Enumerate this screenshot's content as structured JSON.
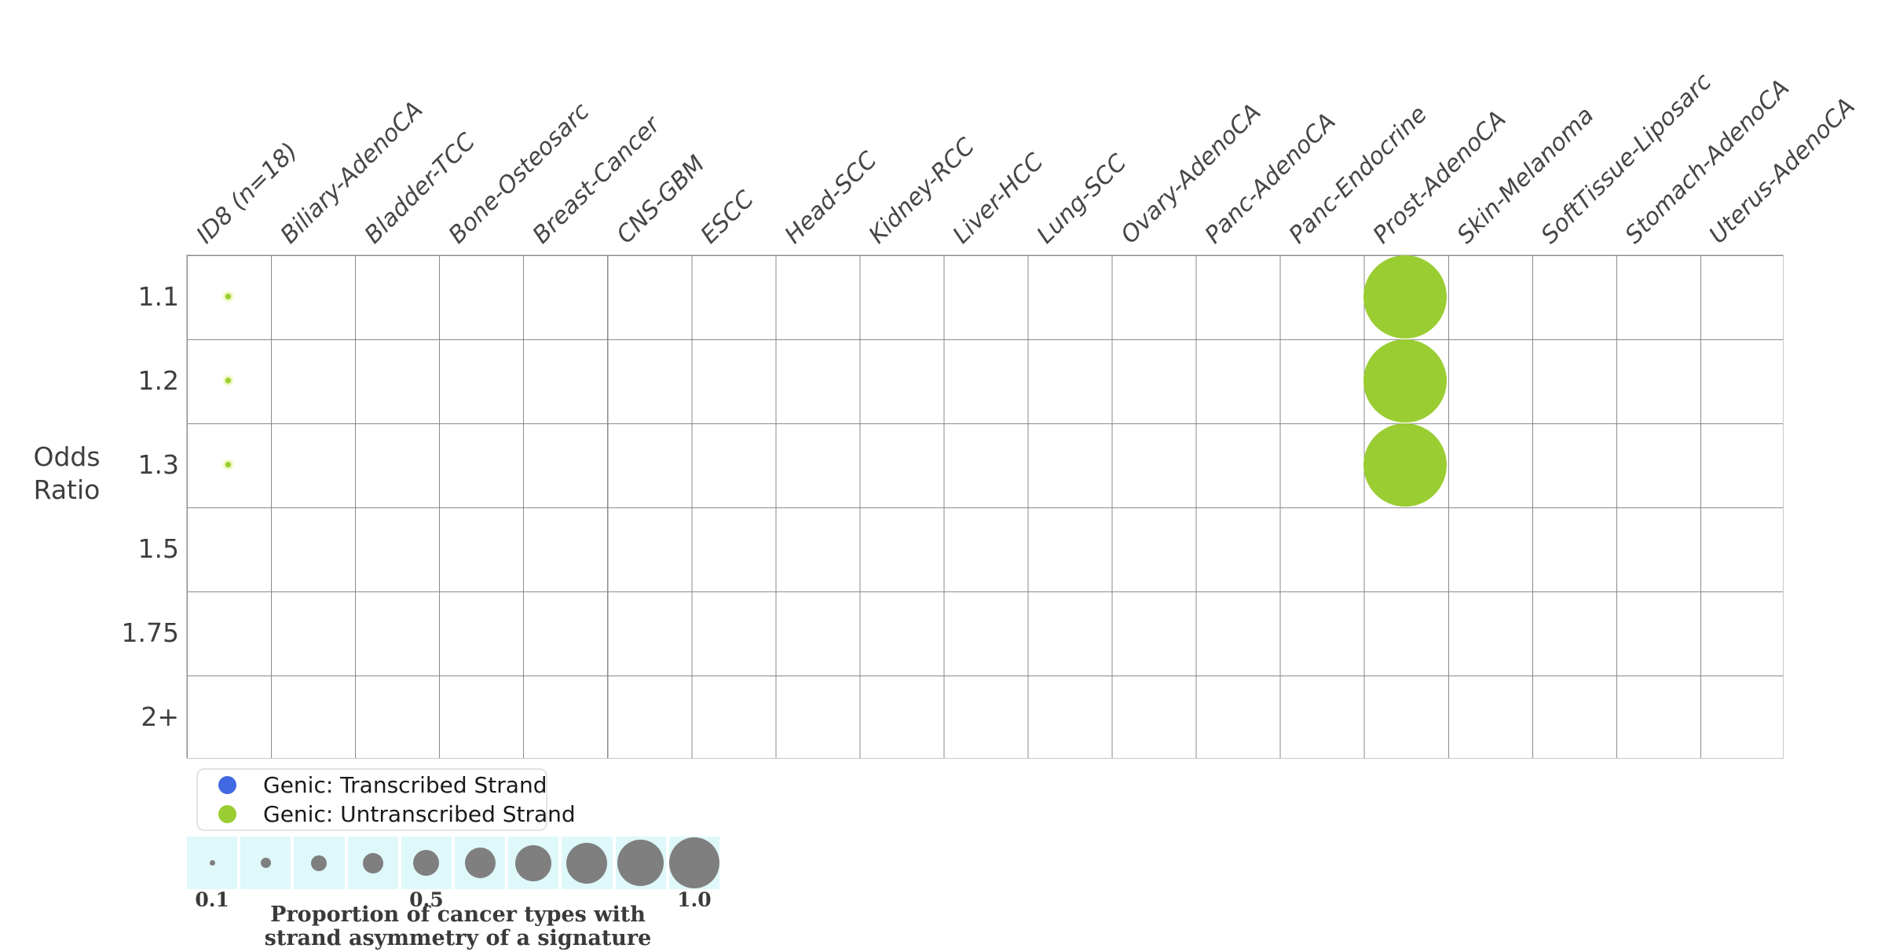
{
  "figure": {
    "y_axis_title": "Odds\nRatio"
  },
  "colors": {
    "untranscribed_green": "#9ACD32",
    "transcribed_blue": "#4169E1",
    "size_legend_gray": "#7f7f7f",
    "size_legend_cell_bg": "#DFF8FA",
    "grid_line": "#8A8A8A",
    "grid_border": "#C9C9C9",
    "text": "#3F3F3F"
  },
  "legend": {
    "items": [
      {
        "key": "transcribed",
        "label": "Genic: Transcribed Strand",
        "color": "#4169E1"
      },
      {
        "key": "untranscribed",
        "label": "Genic: Untranscribed Strand",
        "color": "#9ACD32"
      }
    ]
  },
  "size_legend": {
    "proportions": [
      0.1,
      0.2,
      0.3,
      0.4,
      0.5,
      0.6,
      0.7,
      0.8,
      0.9,
      1.0
    ],
    "ticks": [
      {
        "label": "0.1",
        "cell_index": 0
      },
      {
        "label": "0.5",
        "cell_index": 4
      },
      {
        "label": "1.0",
        "cell_index": 9
      }
    ],
    "caption_line1": "Proportion of cancer types with",
    "caption_line2": "strand asymmetry of a signature"
  },
  "chart_data": {
    "type": "scatter",
    "subtype": "bubble-matrix",
    "title": "",
    "ylabel": "Odds Ratio",
    "grid": true,
    "legend_position": "bottom-left",
    "x_categories": [
      "ID8 (n=18)",
      "Biliary-AdenoCA",
      "Bladder-TCC",
      "Bone-Osteosarc",
      "Breast-Cancer",
      "CNS-GBM",
      "ESCC",
      "Head-SCC",
      "Kidney-RCC",
      "Liver-HCC",
      "Lung-SCC",
      "Ovary-AdenoCA",
      "Panc-AdenoCA",
      "Panc-Endocrine",
      "Prost-AdenoCA",
      "Skin-Melanoma",
      "SoftTissue-Liposarc",
      "Stomach-AdenoCA",
      "Uterus-AdenoCA"
    ],
    "y_categories": [
      "1.1",
      "1.2",
      "1.3",
      "1.5",
      "1.75",
      "2+"
    ],
    "points": [
      {
        "column": "ID8 (n=18)",
        "odds_ratio": "1.1",
        "strand": "untranscribed",
        "proportion": 0.07
      },
      {
        "column": "ID8 (n=18)",
        "odds_ratio": "1.2",
        "strand": "untranscribed",
        "proportion": 0.07
      },
      {
        "column": "ID8 (n=18)",
        "odds_ratio": "1.3",
        "strand": "untranscribed",
        "proportion": 0.07
      },
      {
        "column": "Prost-AdenoCA",
        "odds_ratio": "1.1",
        "strand": "untranscribed",
        "proportion": 1.0
      },
      {
        "column": "Prost-AdenoCA",
        "odds_ratio": "1.2",
        "strand": "untranscribed",
        "proportion": 1.0
      },
      {
        "column": "Prost-AdenoCA",
        "odds_ratio": "1.3",
        "strand": "untranscribed",
        "proportion": 1.0
      }
    ]
  }
}
